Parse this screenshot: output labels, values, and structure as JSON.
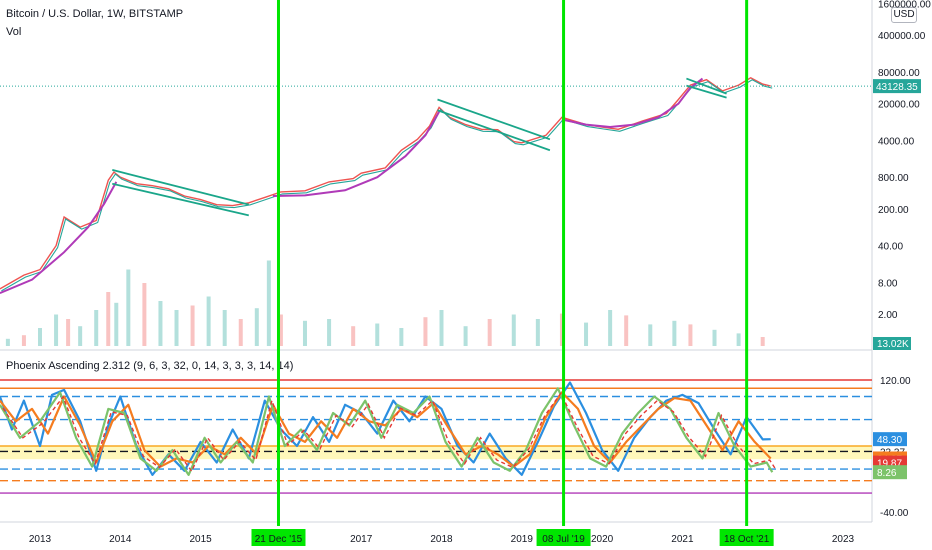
{
  "header": {
    "symbol_title": "Bitcoin / U.S. Dollar, 1W, BITSTAMP",
    "volume_label": "Vol",
    "currency_button": "USD",
    "indicator_label": "Phoenix Ascending 2.312 (9, 6, 3, 32, 0, 14, 3, 3, 3, 14, 14)"
  },
  "colors": {
    "vertical_marker": "#00e600",
    "marker_label_bg": "#00e600",
    "price_up": "#26a69a",
    "price_down": "#ef5350",
    "trend_line": "#1aa68a",
    "curve": "#b03ab8",
    "last_price_bg": "#26a69a",
    "line_blue": "#2b8fe0",
    "line_orange": "#f57c1f",
    "line_green": "#7cc36a",
    "line_red_dash": "#e53935",
    "band_yellow": "#ffeb3b"
  },
  "chart_data": [
    {
      "type": "line",
      "title": "Bitcoin / U.S. Dollar, 1W, BITSTAMP",
      "scale": "log",
      "x_ticks": [
        "2013",
        "2014",
        "2015",
        "2016",
        "2017",
        "2018",
        "2019",
        "2020",
        "2021",
        "2022",
        "2023"
      ],
      "y_ticks": [
        "1600000.00",
        "400000.00",
        "80000.00",
        "20000.00",
        "4000.00",
        "800.00",
        "200.00",
        "40.00",
        "8.00",
        "2.00"
      ],
      "y_ticks_values": [
        1600000,
        400000,
        80000,
        20000,
        4000,
        800,
        200,
        40,
        8,
        2
      ],
      "last_price": "43128.35",
      "series": [
        {
          "x": [
            2012.5,
            2012.8,
            2013.0,
            2013.2,
            2013.3,
            2013.5,
            2013.7,
            2013.85,
            2013.92,
            2014.0,
            2014.2,
            2014.4,
            2014.6,
            2014.8,
            2015.0,
            2015.2,
            2015.4,
            2015.6,
            2015.8,
            2016.0,
            2016.3,
            2016.6,
            2016.9,
            2017.0,
            2017.3,
            2017.5,
            2017.7,
            2017.85,
            2017.97,
            2018.1,
            2018.3,
            2018.5,
            2018.7,
            2018.9,
            2019.0,
            2019.3,
            2019.5,
            2019.8,
            2020.0,
            2020.2,
            2020.5,
            2020.8,
            2020.95,
            2021.1,
            2021.3,
            2021.5,
            2021.7,
            2021.85,
            2022.0,
            2022.1
          ],
          "values": [
            6,
            11,
            14,
            40,
            140,
            90,
            120,
            700,
            1000,
            800,
            600,
            550,
            480,
            350,
            300,
            240,
            230,
            260,
            330,
            420,
            440,
            650,
            750,
            950,
            1200,
            2600,
            4200,
            7500,
            17000,
            11000,
            8000,
            6500,
            6400,
            3800,
            3600,
            5000,
            11000,
            8000,
            7200,
            6500,
            9300,
            13000,
            24000,
            45000,
            57000,
            35000,
            45000,
            62000,
            47000,
            43128.35
          ]
        }
      ],
      "trend_lines": [
        {
          "from": [
            2013.9,
            1100
          ],
          "to": [
            2015.6,
            240
          ]
        },
        {
          "from": [
            2013.9,
            600
          ],
          "to": [
            2015.6,
            150
          ]
        },
        {
          "from": [
            2017.95,
            24000
          ],
          "to": [
            2019.35,
            4200
          ]
        },
        {
          "from": [
            2017.95,
            15000
          ],
          "to": [
            2019.35,
            2600
          ]
        },
        {
          "from": [
            2021.05,
            60000
          ],
          "to": [
            2021.55,
            31000
          ]
        },
        {
          "from": [
            2021.05,
            44000
          ],
          "to": [
            2021.55,
            26000
          ]
        }
      ],
      "curves": [
        [
          [
            2012.5,
            5
          ],
          [
            2012.9,
            9
          ],
          [
            2013.3,
            30
          ],
          [
            2013.6,
            90
          ],
          [
            2013.8,
            250
          ],
          [
            2013.95,
            650
          ]
        ],
        [
          [
            2015.9,
            350
          ],
          [
            2016.3,
            360
          ],
          [
            2016.8,
            450
          ],
          [
            2017.2,
            800
          ],
          [
            2017.55,
            2000
          ],
          [
            2017.8,
            5000
          ],
          [
            2017.97,
            14000
          ]
        ],
        [
          [
            2019.5,
            10000
          ],
          [
            2019.8,
            8000
          ],
          [
            2020.1,
            7200
          ],
          [
            2020.4,
            8000
          ],
          [
            2020.7,
            11000
          ],
          [
            2020.95,
            20000
          ],
          [
            2021.1,
            40000
          ],
          [
            2021.25,
            60000
          ]
        ]
      ]
    },
    {
      "type": "bar",
      "title": "Vol",
      "last_value": "13.02K",
      "x": [
        2012.6,
        2012.8,
        2013.0,
        2013.2,
        2013.35,
        2013.5,
        2013.7,
        2013.85,
        2013.95,
        2014.1,
        2014.3,
        2014.5,
        2014.7,
        2014.9,
        2015.1,
        2015.3,
        2015.5,
        2015.7,
        2015.85,
        2016.0,
        2016.3,
        2016.6,
        2016.9,
        2017.2,
        2017.5,
        2017.8,
        2018.0,
        2018.3,
        2018.6,
        2018.9,
        2019.2,
        2019.5,
        2019.8,
        2020.1,
        2020.3,
        2020.6,
        2020.9,
        2021.1,
        2021.4,
        2021.7,
        2022.0
      ],
      "values": [
        8,
        12,
        20,
        35,
        30,
        22,
        40,
        60,
        48,
        85,
        70,
        50,
        40,
        45,
        55,
        40,
        30,
        42,
        95,
        35,
        28,
        30,
        22,
        25,
        20,
        32,
        40,
        22,
        30,
        35,
        30,
        36,
        26,
        40,
        34,
        24,
        28,
        24,
        18,
        14,
        10
      ]
    },
    {
      "type": "line",
      "title": "Phoenix Ascending 2.312 (9, 6, 3, 32, 0, 14, 3, 3, 3, 14, 14)",
      "y_ticks": [
        "120.00",
        "33.37",
        "-40.00"
      ],
      "y_ticks_values": [
        120,
        33.37,
        -40
      ],
      "value_badges": [
        {
          "label": "48.30",
          "value": 48.3,
          "color": "#2b8fe0"
        },
        {
          "label": "24.87",
          "value": 24.87,
          "color": "#f57c1f"
        },
        {
          "label": "19.87",
          "value": 19.87,
          "color": "#e53935"
        },
        {
          "label": "8.26",
          "value": 8.26,
          "color": "#7cc36a"
        }
      ],
      "levels": [
        {
          "value": 120,
          "color": "#e53935",
          "style": "solid"
        },
        {
          "value": 110,
          "color": "#f57c1f",
          "style": "solid"
        },
        {
          "value": 100,
          "color": "#2b8fe0",
          "style": "dashed"
        },
        {
          "value": 72,
          "color": "#2b8fe0",
          "style": "dashed"
        },
        {
          "value": 40,
          "color": "#f9a825",
          "style": "solid"
        },
        {
          "value": 33.37,
          "color": "#131722",
          "style": "dashed"
        },
        {
          "value": 12,
          "color": "#2b8fe0",
          "style": "dashed"
        },
        {
          "value": -2,
          "color": "#f57c1f",
          "style": "dashed"
        },
        {
          "value": -17,
          "color": "#b03ab8",
          "style": "solid"
        }
      ],
      "band": {
        "from": 24,
        "to": 40
      },
      "series": [
        {
          "name": "",
          "color": "#2b8fe0",
          "x": [
            2012.5,
            2012.65,
            2012.8,
            2013.0,
            2013.15,
            2013.3,
            2013.5,
            2013.7,
            2013.85,
            2014.0,
            2014.2,
            2014.4,
            2014.6,
            2014.8,
            2015.0,
            2015.2,
            2015.4,
            2015.6,
            2015.8,
            2016.0,
            2016.2,
            2016.4,
            2016.6,
            2016.8,
            2017.0,
            2017.2,
            2017.4,
            2017.6,
            2017.8,
            2018.0,
            2018.2,
            2018.4,
            2018.6,
            2018.8,
            2019.0,
            2019.2,
            2019.4,
            2019.6,
            2019.8,
            2020.0,
            2020.2,
            2020.4,
            2020.6,
            2020.8,
            2021.0,
            2021.2,
            2021.4,
            2021.6,
            2021.8,
            2022.0,
            2022.1
          ],
          "values": [
            100,
            60,
            95,
            40,
            102,
            108,
            70,
            10,
            65,
            100,
            40,
            5,
            30,
            10,
            45,
            20,
            60,
            25,
            95,
            60,
            40,
            75,
            45,
            90,
            80,
            55,
            95,
            70,
            100,
            85,
            40,
            20,
            55,
            25,
            5,
            45,
            88,
            117,
            80,
            35,
            10,
            50,
            75,
            95,
            102,
            92,
            60,
            30,
            75,
            48,
            48.3
          ]
        },
        {
          "name": "",
          "color": "#f57c1f",
          "x": [
            2012.5,
            2012.7,
            2012.9,
            2013.1,
            2013.3,
            2013.5,
            2013.7,
            2013.9,
            2014.1,
            2014.3,
            2014.5,
            2014.7,
            2014.9,
            2015.1,
            2015.3,
            2015.5,
            2015.7,
            2015.9,
            2016.1,
            2016.3,
            2016.5,
            2016.7,
            2016.9,
            2017.1,
            2017.3,
            2017.5,
            2017.7,
            2017.9,
            2018.1,
            2018.3,
            2018.5,
            2018.7,
            2018.9,
            2019.1,
            2019.3,
            2019.5,
            2019.7,
            2019.9,
            2020.1,
            2020.3,
            2020.5,
            2020.7,
            2020.9,
            2021.1,
            2021.3,
            2021.5,
            2021.7,
            2021.9,
            2022.1
          ],
          "values": [
            95,
            70,
            85,
            55,
            100,
            65,
            20,
            70,
            90,
            35,
            15,
            25,
            20,
            40,
            30,
            50,
            30,
            90,
            55,
            45,
            70,
            50,
            85,
            70,
            65,
            85,
            75,
            92,
            60,
            30,
            40,
            30,
            15,
            30,
            75,
            105,
            85,
            40,
            20,
            45,
            65,
            85,
            98,
            95,
            65,
            35,
            70,
            45,
            24.87
          ]
        },
        {
          "name": "",
          "color": "#7cc36a",
          "x": [
            2012.5,
            2012.75,
            2013.0,
            2013.25,
            2013.45,
            2013.65,
            2013.85,
            2014.05,
            2014.25,
            2014.45,
            2014.65,
            2014.85,
            2015.05,
            2015.25,
            2015.45,
            2015.65,
            2015.85,
            2016.05,
            2016.25,
            2016.45,
            2016.65,
            2016.85,
            2017.05,
            2017.25,
            2017.45,
            2017.65,
            2017.85,
            2018.05,
            2018.25,
            2018.45,
            2018.65,
            2018.85,
            2019.05,
            2019.25,
            2019.45,
            2019.65,
            2019.85,
            2020.05,
            2020.25,
            2020.45,
            2020.65,
            2020.85,
            2021.05,
            2021.25,
            2021.45,
            2021.65,
            2021.85,
            2022.05,
            2022.12
          ],
          "values": [
            90,
            50,
            70,
            105,
            50,
            15,
            85,
            80,
            25,
            10,
            35,
            5,
            50,
            20,
            45,
            20,
            100,
            40,
            60,
            35,
            80,
            65,
            95,
            50,
            90,
            80,
            100,
            45,
            15,
            50,
            20,
            10,
            35,
            80,
            110,
            65,
            25,
            15,
            55,
            80,
            100,
            85,
            50,
            25,
            80,
            40,
            15,
            20,
            8.26
          ]
        }
      ]
    }
  ],
  "x_axis": {
    "ticks": [
      "2013",
      "2014",
      "2015",
      "2016",
      "2017",
      "2018",
      "2019",
      "2020",
      "2021",
      "2022",
      "2023"
    ],
    "tick_values": [
      2013,
      2014,
      2015,
      2016,
      2017,
      2018,
      2019,
      2020,
      2021,
      2022,
      2023
    ]
  },
  "markers": [
    {
      "x": 2015.97,
      "label": "21 Dec '15"
    },
    {
      "x": 2019.52,
      "label": "08 Jul '19"
    },
    {
      "x": 2021.8,
      "label": "18 Oct '21"
    }
  ]
}
